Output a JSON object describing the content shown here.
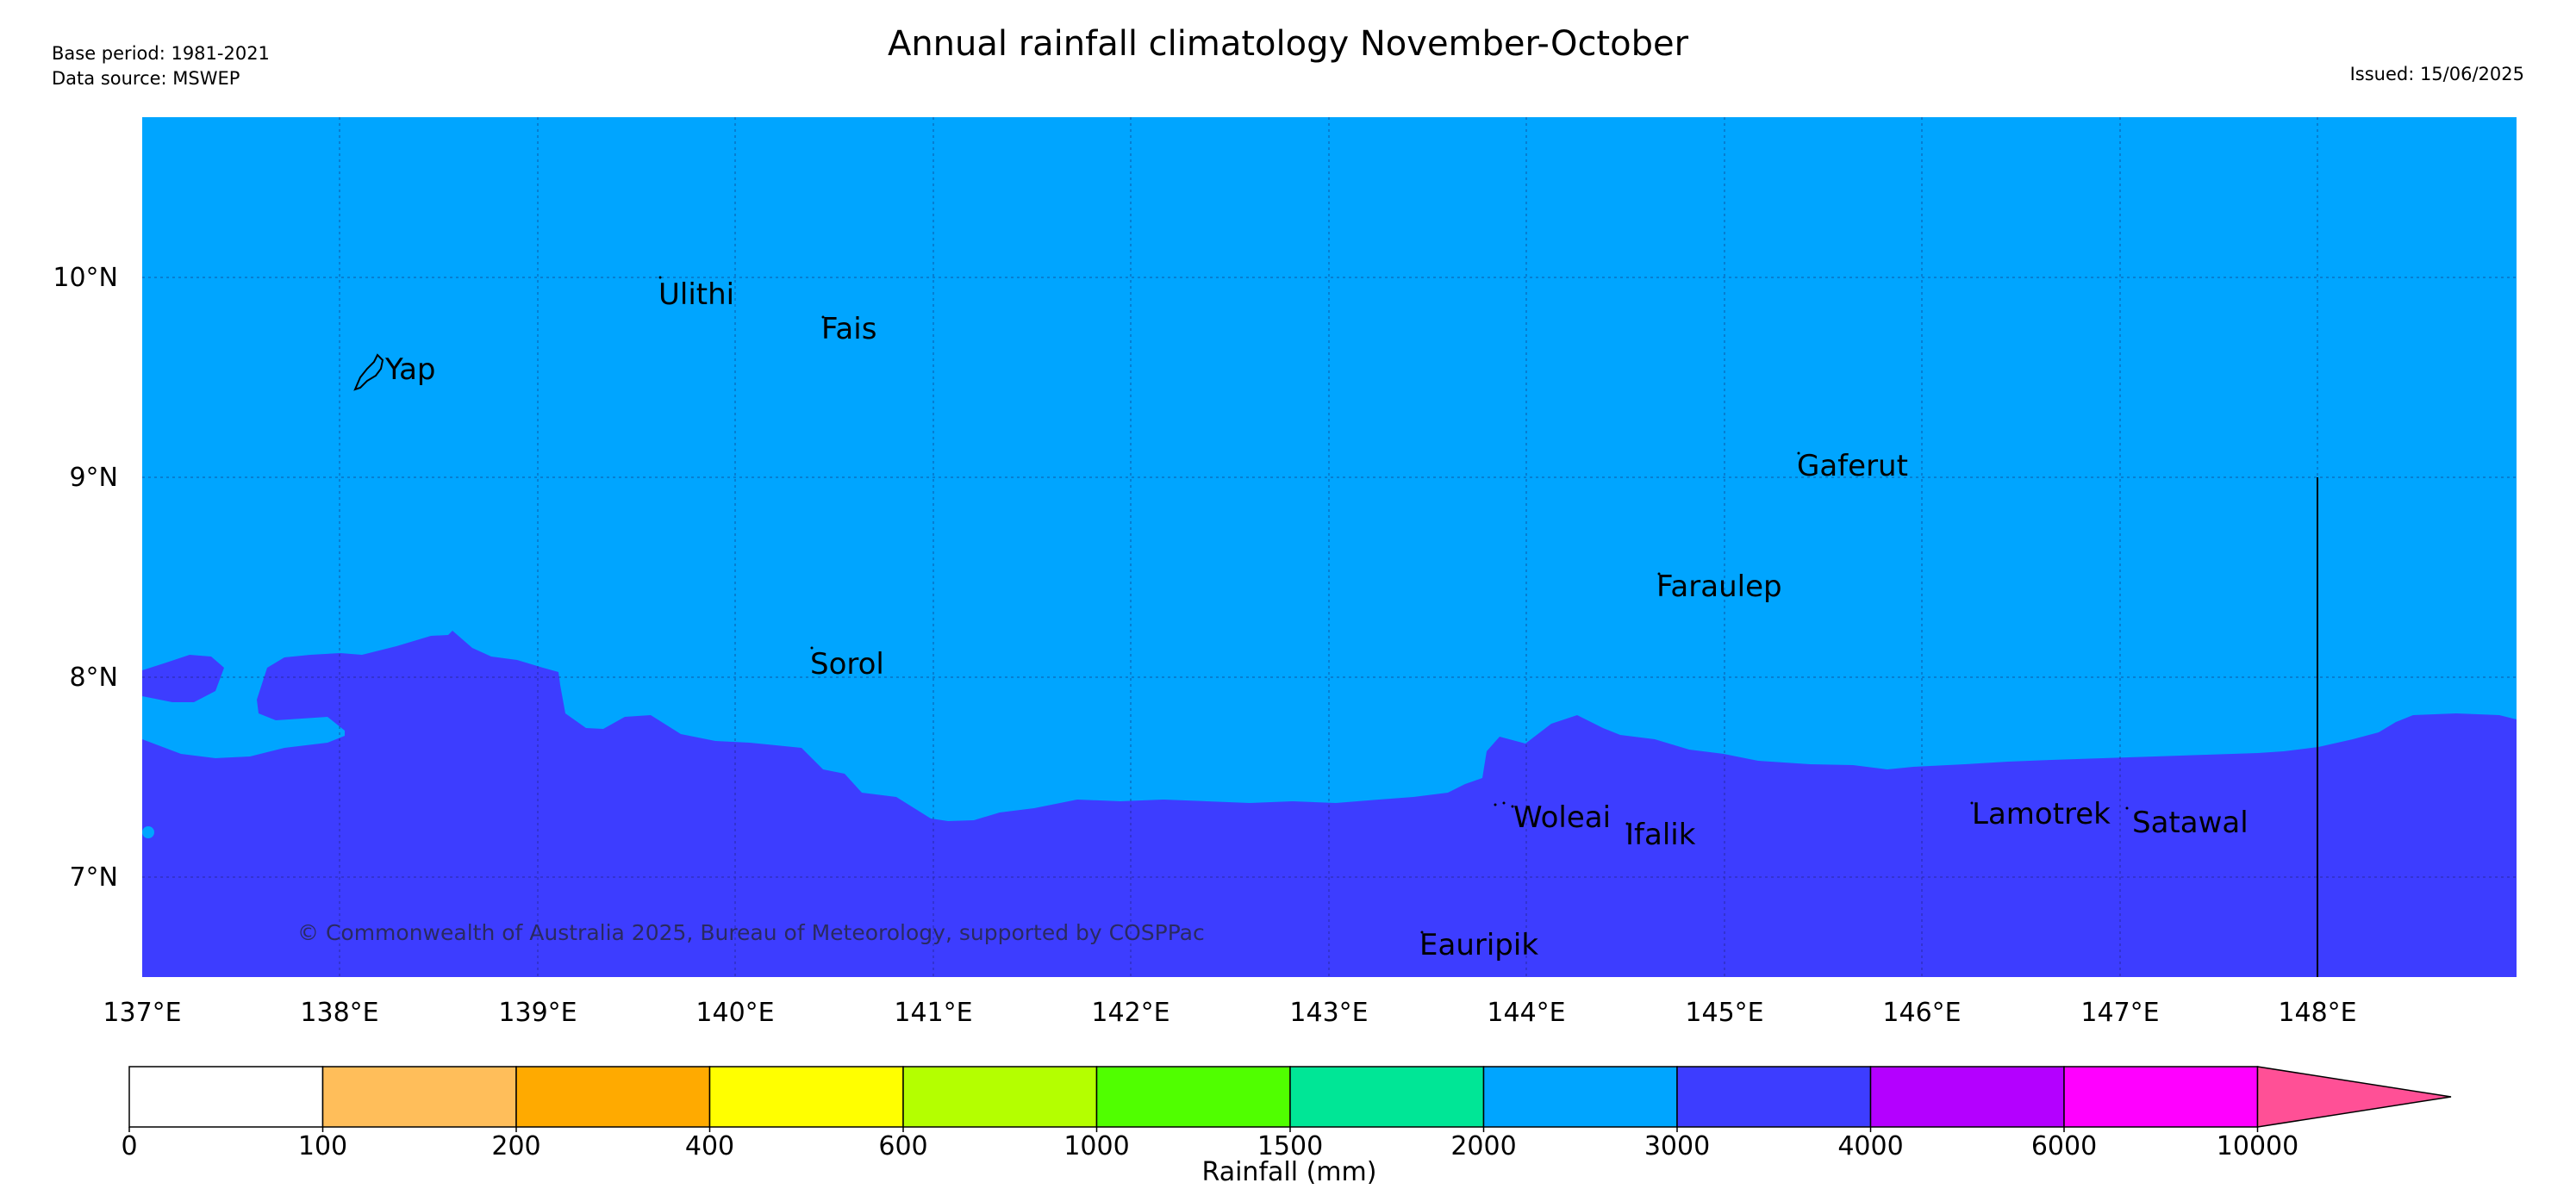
{
  "header": {
    "title": "Annual rainfall climatology November-October",
    "base_period": "Base period: 1981-2021",
    "data_source": "Data source: MSWEP",
    "issued": "Issued: 15/06/2025"
  },
  "map": {
    "lon_labels": [
      "137°E",
      "138°E",
      "139°E",
      "140°E",
      "141°E",
      "142°E",
      "143°E",
      "144°E",
      "145°E",
      "146°E",
      "147°E",
      "148°E"
    ],
    "lat_labels": [
      "10°N",
      "9°N",
      "8°N",
      "7°N"
    ],
    "places": [
      {
        "name": "Ulithi"
      },
      {
        "name": "Fais"
      },
      {
        "name": "Yap"
      },
      {
        "name": "Gaferut"
      },
      {
        "name": "Faraulep"
      },
      {
        "name": "Sorol"
      },
      {
        "name": "Woleai"
      },
      {
        "name": "Ifalik"
      },
      {
        "name": "Lamotrek"
      },
      {
        "name": "Satawal"
      },
      {
        "name": "Eauripik"
      }
    ],
    "copyright": "© Commonwealth of Australia 2025, Bureau of Meteorology, supported by COSPPac",
    "colors": {
      "rain_2000_3000": "#00a5ff",
      "rain_3000_4000": "#3d3dff"
    }
  },
  "legend": {
    "title": "Rainfall (mm)",
    "tick_labels": [
      "0",
      "100",
      "200",
      "400",
      "600",
      "1000",
      "1500",
      "2000",
      "3000",
      "4000",
      "6000",
      "10000"
    ],
    "colors": [
      "#ffffff",
      "#ffbe5a",
      "#ffaa00",
      "#ffff00",
      "#b4ff00",
      "#50ff00",
      "#00e696",
      "#00a5ff",
      "#3d3dff",
      "#b400ff",
      "#ff00ff",
      "#ff5096"
    ]
  }
}
